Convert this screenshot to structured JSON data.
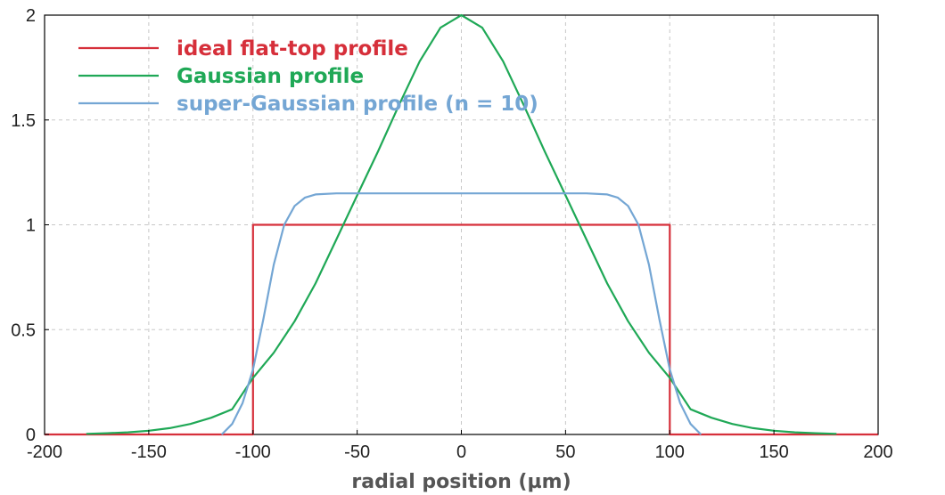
{
  "chart_data": {
    "type": "line",
    "title": "",
    "xlabel": "radial position (µm)",
    "ylabel": "",
    "xlim": [
      -200,
      200
    ],
    "ylim": [
      0,
      2
    ],
    "x_ticks": [
      -200,
      -150,
      -100,
      -50,
      0,
      50,
      100,
      150,
      200
    ],
    "x_tick_labels": [
      "-200",
      "-150",
      "-100",
      "-50",
      "0",
      "50",
      "100",
      "150",
      "200"
    ],
    "y_ticks": [
      0,
      0.5,
      1,
      1.5,
      2
    ],
    "y_tick_labels": [
      "0",
      "0.5",
      "1",
      "1.5",
      "2"
    ],
    "grid": true,
    "legend_position": "top-left",
    "series": [
      {
        "name": "ideal flat-top profile",
        "color": "#d62f3a",
        "x": [
          -200,
          -100,
          -100,
          100,
          100,
          200
        ],
        "y": [
          0,
          0,
          1,
          1,
          0,
          0
        ]
      },
      {
        "name": "Gaussian profile",
        "color": "#1fa856",
        "x": [
          -180,
          -170,
          -160,
          -150,
          -140,
          -130,
          -120,
          -110,
          -100,
          -90,
          -80,
          -70,
          -60,
          -50,
          -40,
          -30,
          -20,
          -10,
          0,
          10,
          20,
          30,
          40,
          50,
          60,
          70,
          80,
          90,
          100,
          110,
          120,
          130,
          140,
          150,
          160,
          170,
          180
        ],
        "y": [
          0.003,
          0.006,
          0.01,
          0.018,
          0.03,
          0.05,
          0.08,
          0.12,
          0.27,
          0.39,
          0.54,
          0.72,
          0.93,
          1.14,
          1.35,
          1.57,
          1.78,
          1.94,
          2.0,
          1.94,
          1.78,
          1.57,
          1.35,
          1.14,
          0.93,
          0.72,
          0.54,
          0.39,
          0.27,
          0.12,
          0.08,
          0.05,
          0.03,
          0.018,
          0.01,
          0.006,
          0.003
        ]
      },
      {
        "name": "super-Gaussian profile (n = 10)",
        "color": "#74a6d4",
        "x": [
          -115,
          -110,
          -105,
          -100,
          -95,
          -90,
          -85,
          -80,
          -75,
          -70,
          -60,
          -50,
          -40,
          -20,
          0,
          20,
          40,
          50,
          60,
          70,
          75,
          80,
          85,
          90,
          95,
          100,
          105,
          110,
          115
        ],
        "y": [
          0.0,
          0.05,
          0.15,
          0.31,
          0.55,
          0.81,
          1.0,
          1.09,
          1.13,
          1.145,
          1.15,
          1.15,
          1.15,
          1.15,
          1.15,
          1.15,
          1.15,
          1.15,
          1.15,
          1.145,
          1.13,
          1.09,
          1.0,
          0.81,
          0.55,
          0.31,
          0.15,
          0.05,
          0.0
        ]
      }
    ]
  }
}
